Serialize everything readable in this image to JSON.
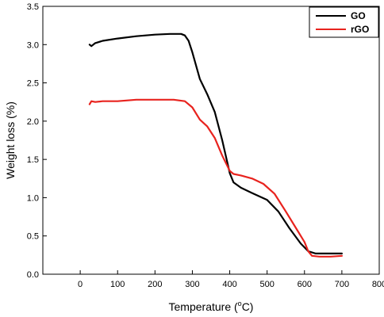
{
  "chart_data": {
    "type": "line",
    "xlabel": "Temperature (",
    "xlabel_sup": "o",
    "xlabel_unit": "C)",
    "ylabel": "Weight loss (%)",
    "xlim": [
      -100,
      800
    ],
    "ylim": [
      0.0,
      3.5
    ],
    "xticks": [
      0,
      100,
      200,
      300,
      400,
      500,
      600,
      700,
      800
    ],
    "yticks": [
      0.0,
      0.5,
      1.0,
      1.5,
      2.0,
      2.5,
      3.0,
      3.5
    ],
    "xtick_labels": [
      "0",
      "100",
      "200",
      "300",
      "400",
      "500",
      "600",
      "700",
      "800"
    ],
    "ytick_labels": [
      "0.0",
      "0.5",
      "1.0",
      "1.5",
      "2.0",
      "2.5",
      "3.0",
      "3.5"
    ],
    "grid": false,
    "legend_position": "top-right",
    "series": [
      {
        "name": "GO",
        "color": "#000000",
        "x": [
          25,
          30,
          40,
          60,
          100,
          150,
          200,
          240,
          270,
          280,
          290,
          300,
          320,
          340,
          360,
          380,
          400,
          410,
          430,
          460,
          500,
          530,
          560,
          590,
          610,
          630,
          660,
          700
        ],
        "y": [
          3.0,
          2.98,
          3.02,
          3.05,
          3.08,
          3.11,
          3.13,
          3.14,
          3.14,
          3.12,
          3.05,
          2.9,
          2.55,
          2.35,
          2.12,
          1.75,
          1.32,
          1.2,
          1.13,
          1.06,
          0.97,
          0.82,
          0.6,
          0.4,
          0.3,
          0.27,
          0.27,
          0.27
        ]
      },
      {
        "name": "rGO",
        "color": "#e8231e",
        "x": [
          25,
          30,
          40,
          60,
          100,
          150,
          200,
          250,
          280,
          300,
          320,
          340,
          360,
          380,
          400,
          410,
          430,
          460,
          490,
          520,
          550,
          580,
          600,
          610,
          620,
          640,
          670,
          700
        ],
        "y": [
          2.22,
          2.26,
          2.25,
          2.26,
          2.26,
          2.28,
          2.28,
          2.28,
          2.26,
          2.18,
          2.02,
          1.93,
          1.78,
          1.55,
          1.35,
          1.31,
          1.29,
          1.25,
          1.18,
          1.05,
          0.82,
          0.58,
          0.42,
          0.3,
          0.24,
          0.23,
          0.23,
          0.24
        ]
      }
    ]
  }
}
